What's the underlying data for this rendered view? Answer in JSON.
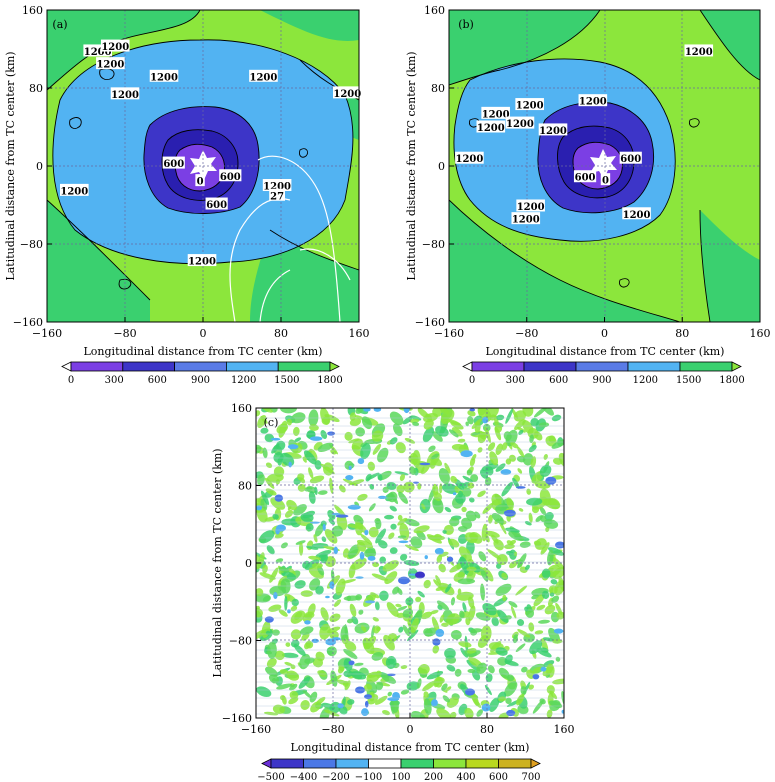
{
  "figure": "three-panel tropical cyclone distribution figure",
  "chart_data": [
    {
      "type": "heatmap",
      "panel_label": "(a)",
      "xlabel": "Longitudinal distance from TC center (km)",
      "ylabel": "Latitudinal distance from TC center (km)",
      "xlim": [
        -160,
        160
      ],
      "ylim": [
        -160,
        160
      ],
      "xticks": [
        "−160",
        "−80",
        "0",
        "80",
        "160"
      ],
      "yticks": [
        "160",
        "80",
        "0",
        "−80",
        "−160"
      ],
      "colorbar": {
        "levels": [
          "0",
          "300",
          "600",
          "900",
          "1200",
          "1500",
          "1800"
        ],
        "colors": [
          "#ffffff",
          "#7b3fe4",
          "#3d35c8",
          "#5a7be6",
          "#52b3f2",
          "#3ad06f",
          "#8ce63c"
        ]
      },
      "contour_labels": [
        {
          "text": "1200",
          "x": -95,
          "y": 105
        },
        {
          "text": "1200",
          "x": -108,
          "y": 118
        },
        {
          "text": "1200",
          "x": -90,
          "y": 123
        },
        {
          "text": "1200",
          "x": -40,
          "y": 92
        },
        {
          "text": "1200",
          "x": 62,
          "y": 92
        },
        {
          "text": "1200",
          "x": -80,
          "y": 74
        },
        {
          "text": "1200",
          "x": 148,
          "y": 75
        },
        {
          "text": "1200",
          "x": -132,
          "y": -25
        },
        {
          "text": "1200",
          "x": 76,
          "y": -20
        },
        {
          "text": "1200",
          "x": -1,
          "y": -97
        },
        {
          "text": "600",
          "x": -30,
          "y": 3
        },
        {
          "text": "600",
          "x": 28,
          "y": -10
        },
        {
          "text": "600",
          "x": 14,
          "y": -39
        },
        {
          "text": "0",
          "x": -3,
          "y": -15
        },
        {
          "text": "27",
          "x": 76,
          "y": -30
        }
      ]
    },
    {
      "type": "heatmap",
      "panel_label": "(b)",
      "xlabel": "Longitudinal distance from TC center (km)",
      "ylabel": "Latitudinal distance from TC center (km)",
      "xlim": [
        -160,
        160
      ],
      "ylim": [
        -160,
        160
      ],
      "xticks": [
        "−160",
        "−80",
        "0",
        "80",
        "160"
      ],
      "yticks": [
        "160",
        "80",
        "0",
        "−80",
        "−160"
      ],
      "colorbar": {
        "levels": [
          "0",
          "300",
          "600",
          "900",
          "1200",
          "1500",
          "1800"
        ],
        "colors": [
          "#ffffff",
          "#7b3fe4",
          "#3d35c8",
          "#5a7be6",
          "#52b3f2",
          "#3ad06f",
          "#8ce63c"
        ]
      },
      "contour_labels": [
        {
          "text": "1200",
          "x": 97,
          "y": 118
        },
        {
          "text": "1200",
          "x": -112,
          "y": 54
        },
        {
          "text": "1200",
          "x": -117,
          "y": 40
        },
        {
          "text": "1200",
          "x": -77,
          "y": 63
        },
        {
          "text": "1200",
          "x": -87,
          "y": 44
        },
        {
          "text": "1200",
          "x": -53,
          "y": 37
        },
        {
          "text": "1200",
          "x": -12,
          "y": 67
        },
        {
          "text": "1200",
          "x": -139,
          "y": 8
        },
        {
          "text": "1200",
          "x": -76,
          "y": -41
        },
        {
          "text": "1200",
          "x": -81,
          "y": -54
        },
        {
          "text": "1200",
          "x": 33,
          "y": -49
        },
        {
          "text": "600",
          "x": 27,
          "y": 8
        },
        {
          "text": "600",
          "x": -20,
          "y": -11
        },
        {
          "text": "0",
          "x": 1,
          "y": -14
        }
      ]
    },
    {
      "type": "heatmap",
      "panel_label": "(c)",
      "xlabel": "Longitudinal distance from TC center (km)",
      "ylabel": "Latitudinal distance from TC center (km)",
      "xlim": [
        -160,
        160
      ],
      "ylim": [
        -160,
        160
      ],
      "xticks": [
        "−160",
        "−80",
        "0",
        "80",
        "160"
      ],
      "yticks": [
        "160",
        "80",
        "0",
        "−80",
        "−160"
      ],
      "colorbar": {
        "levels": [
          "−500",
          "−400",
          "−200",
          "−100",
          "100",
          "200",
          "400",
          "600",
          "700"
        ],
        "colors": [
          "#6a2fd8",
          "#3d35c8",
          "#4b78e6",
          "#52b3f2",
          "#ffffff",
          "#3ad06f",
          "#8ce63c",
          "#b9d81f",
          "#ccb221",
          "#e0a020"
        ]
      }
    }
  ]
}
